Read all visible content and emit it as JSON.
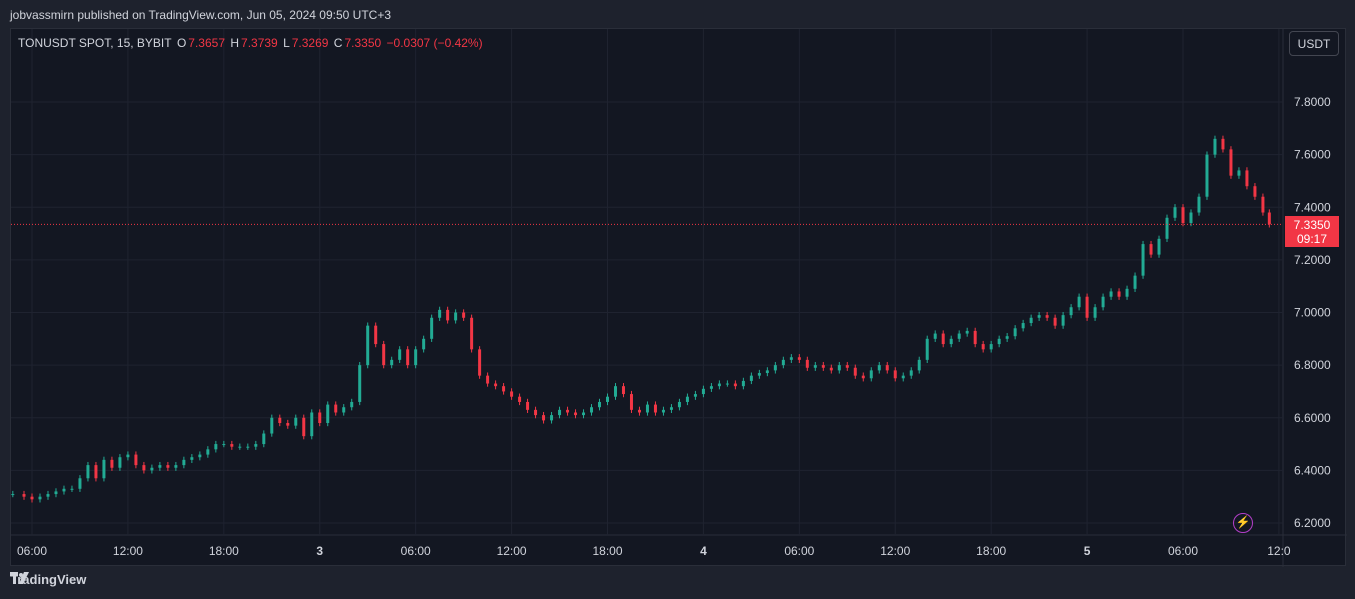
{
  "header": {
    "published_text": "jobvassmirn published on TradingView.com, Jun 05, 2024 09:50 UTC+3"
  },
  "legend": {
    "symbol": "TONUSDT SPOT, 15, BYBIT",
    "open_label": "O",
    "open": "7.3657",
    "high_label": "H",
    "high": "7.3739",
    "low_label": "L",
    "low": "7.3269",
    "close_label": "C",
    "close": "7.3350",
    "change": "−0.0307 (−0.42%)"
  },
  "currency_button": "USDT",
  "last_price": {
    "value": "7.3350",
    "countdown": "09:17"
  },
  "footer": {
    "brand": "TradingView"
  },
  "colors": {
    "up": "#22ab94",
    "down": "#f23645",
    "background": "#131722",
    "grid": "#1f2330"
  },
  "chart_data": {
    "type": "candlestick",
    "interval": "15",
    "y_axis": {
      "ticks": [
        6.2,
        6.4,
        6.6,
        6.8,
        7.0,
        7.2,
        7.4,
        7.6,
        7.8
      ],
      "tick_labels": [
        "6.2000",
        "6.4000",
        "6.6000",
        "6.8000",
        "7.0000",
        "7.2000",
        "7.4000",
        "7.6000",
        "7.8000"
      ],
      "range": [
        6.15,
        7.95
      ]
    },
    "x_axis": {
      "tick_labels": [
        "06:00",
        "12:00",
        "18:00",
        "3",
        "06:00",
        "12:00",
        "18:00",
        "4",
        "06:00",
        "12:00",
        "18:00",
        "5",
        "06:00",
        "12:0"
      ],
      "tick_hours": [
        6,
        12,
        18,
        24,
        30,
        36,
        42,
        48,
        54,
        60,
        66,
        72,
        78,
        84
      ],
      "range_hours": [
        4.75,
        84.6
      ]
    },
    "last_price": 7.335,
    "grid": true,
    "series_close": [
      [
        4.8,
        6.31
      ],
      [
        5.5,
        6.3
      ],
      [
        6.0,
        6.29
      ],
      [
        6.5,
        6.3
      ],
      [
        7.0,
        6.31
      ],
      [
        7.5,
        6.32
      ],
      [
        8.0,
        6.33
      ],
      [
        8.5,
        6.33
      ],
      [
        9.0,
        6.37
      ],
      [
        9.5,
        6.42
      ],
      [
        10.0,
        6.37
      ],
      [
        10.5,
        6.44
      ],
      [
        11.0,
        6.41
      ],
      [
        11.5,
        6.45
      ],
      [
        12.0,
        6.46
      ],
      [
        12.5,
        6.42
      ],
      [
        13.0,
        6.4
      ],
      [
        13.5,
        6.41
      ],
      [
        14.0,
        6.42
      ],
      [
        14.5,
        6.41
      ],
      [
        15.0,
        6.42
      ],
      [
        15.5,
        6.44
      ],
      [
        16.0,
        6.45
      ],
      [
        16.5,
        6.46
      ],
      [
        17.0,
        6.48
      ],
      [
        17.5,
        6.5
      ],
      [
        18.0,
        6.5
      ],
      [
        18.5,
        6.49
      ],
      [
        19.0,
        6.49
      ],
      [
        19.5,
        6.49
      ],
      [
        20.0,
        6.5
      ],
      [
        20.5,
        6.54
      ],
      [
        21.0,
        6.6
      ],
      [
        21.5,
        6.58
      ],
      [
        22.0,
        6.57
      ],
      [
        22.5,
        6.6
      ],
      [
        23.0,
        6.53
      ],
      [
        23.5,
        6.62
      ],
      [
        24.0,
        6.58
      ],
      [
        24.5,
        6.65
      ],
      [
        25.0,
        6.62
      ],
      [
        25.5,
        6.64
      ],
      [
        26.0,
        6.66
      ],
      [
        26.5,
        6.8
      ],
      [
        27.0,
        6.95
      ],
      [
        27.5,
        6.88
      ],
      [
        28.0,
        6.8
      ],
      [
        28.5,
        6.82
      ],
      [
        29.0,
        6.86
      ],
      [
        29.5,
        6.8
      ],
      [
        30.0,
        6.86
      ],
      [
        30.5,
        6.9
      ],
      [
        31.0,
        6.98
      ],
      [
        31.5,
        7.01
      ],
      [
        32.0,
        6.97
      ],
      [
        32.5,
        7.0
      ],
      [
        33.0,
        6.98
      ],
      [
        33.5,
        6.86
      ],
      [
        34.0,
        6.76
      ],
      [
        34.5,
        6.73
      ],
      [
        35.0,
        6.72
      ],
      [
        35.5,
        6.7
      ],
      [
        36.0,
        6.68
      ],
      [
        36.5,
        6.66
      ],
      [
        37.0,
        6.63
      ],
      [
        37.5,
        6.61
      ],
      [
        38.0,
        6.59
      ],
      [
        38.5,
        6.61
      ],
      [
        39.0,
        6.63
      ],
      [
        39.5,
        6.62
      ],
      [
        40.0,
        6.61
      ],
      [
        40.5,
        6.62
      ],
      [
        41.0,
        6.64
      ],
      [
        41.5,
        6.66
      ],
      [
        42.0,
        6.68
      ],
      [
        42.5,
        6.72
      ],
      [
        43.0,
        6.69
      ],
      [
        43.5,
        6.63
      ],
      [
        44.0,
        6.62
      ],
      [
        44.5,
        6.65
      ],
      [
        45.0,
        6.62
      ],
      [
        45.5,
        6.63
      ],
      [
        46.0,
        6.64
      ],
      [
        46.5,
        6.66
      ],
      [
        47.0,
        6.68
      ],
      [
        47.5,
        6.69
      ],
      [
        48.0,
        6.71
      ],
      [
        48.5,
        6.72
      ],
      [
        49.0,
        6.73
      ],
      [
        49.5,
        6.73
      ],
      [
        50.0,
        6.72
      ],
      [
        50.5,
        6.74
      ],
      [
        51.0,
        6.76
      ],
      [
        51.5,
        6.77
      ],
      [
        52.0,
        6.78
      ],
      [
        52.5,
        6.8
      ],
      [
        53.0,
        6.82
      ],
      [
        53.5,
        6.83
      ],
      [
        54.0,
        6.82
      ],
      [
        54.5,
        6.79
      ],
      [
        55.0,
        6.8
      ],
      [
        55.5,
        6.79
      ],
      [
        56.0,
        6.78
      ],
      [
        56.5,
        6.8
      ],
      [
        57.0,
        6.79
      ],
      [
        57.5,
        6.76
      ],
      [
        58.0,
        6.75
      ],
      [
        58.5,
        6.78
      ],
      [
        59.0,
        6.8
      ],
      [
        59.5,
        6.78
      ],
      [
        60.0,
        6.75
      ],
      [
        60.5,
        6.76
      ],
      [
        61.0,
        6.78
      ],
      [
        61.5,
        6.82
      ],
      [
        62.0,
        6.9
      ],
      [
        62.5,
        6.92
      ],
      [
        63.0,
        6.88
      ],
      [
        63.5,
        6.9
      ],
      [
        64.0,
        6.92
      ],
      [
        64.5,
        6.93
      ],
      [
        65.0,
        6.88
      ],
      [
        65.5,
        6.86
      ],
      [
        66.0,
        6.88
      ],
      [
        66.5,
        6.9
      ],
      [
        67.0,
        6.91
      ],
      [
        67.5,
        6.94
      ],
      [
        68.0,
        6.96
      ],
      [
        68.5,
        6.98
      ],
      [
        69.0,
        6.99
      ],
      [
        69.5,
        6.98
      ],
      [
        70.0,
        6.95
      ],
      [
        70.5,
        6.99
      ],
      [
        71.0,
        7.02
      ],
      [
        71.5,
        7.06
      ],
      [
        72.0,
        6.98
      ],
      [
        72.5,
        7.02
      ],
      [
        73.0,
        7.06
      ],
      [
        73.5,
        7.08
      ],
      [
        74.0,
        7.06
      ],
      [
        74.5,
        7.09
      ],
      [
        75.0,
        7.14
      ],
      [
        75.5,
        7.26
      ],
      [
        76.0,
        7.22
      ],
      [
        76.5,
        7.28
      ],
      [
        77.0,
        7.36
      ],
      [
        77.5,
        7.4
      ],
      [
        78.0,
        7.34
      ],
      [
        78.5,
        7.38
      ],
      [
        79.0,
        7.44
      ],
      [
        79.5,
        7.6
      ],
      [
        80.0,
        7.66
      ],
      [
        80.5,
        7.62
      ],
      [
        81.0,
        7.52
      ],
      [
        81.5,
        7.54
      ],
      [
        82.0,
        7.48
      ],
      [
        82.5,
        7.44
      ],
      [
        83.0,
        7.38
      ],
      [
        83.4,
        7.335
      ]
    ]
  }
}
